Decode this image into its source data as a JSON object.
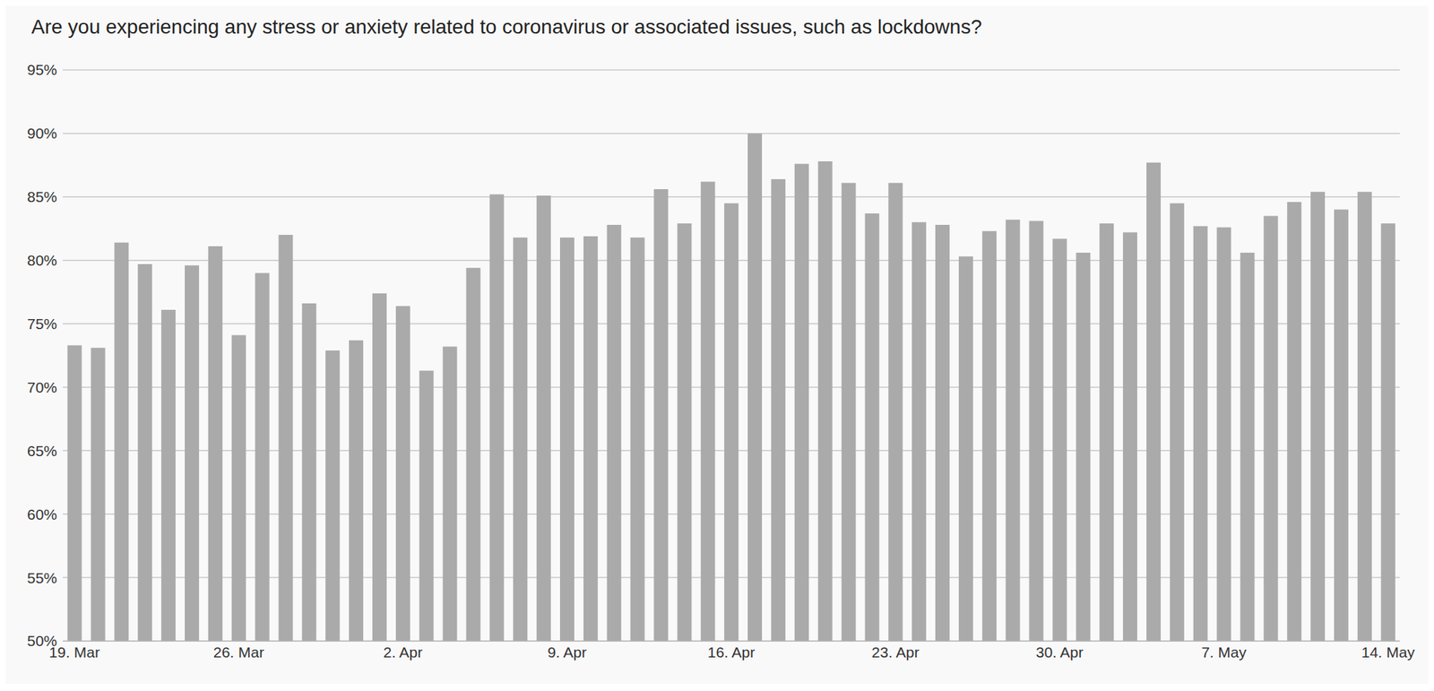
{
  "chart_data": {
    "type": "bar",
    "title": "Are you experiencing any stress or anxiety related to coronavirus or associated issues, such as lockdowns?",
    "categories": [
      "19. Mar",
      null,
      null,
      null,
      null,
      null,
      null,
      "26. Mar",
      null,
      null,
      null,
      null,
      null,
      null,
      "2. Apr",
      null,
      null,
      null,
      null,
      null,
      null,
      "9. Apr",
      null,
      null,
      null,
      null,
      null,
      null,
      "16. Apr",
      null,
      null,
      null,
      null,
      null,
      null,
      "23. Apr",
      null,
      null,
      null,
      null,
      null,
      null,
      "30. Apr",
      null,
      null,
      null,
      null,
      null,
      null,
      "7. May",
      null,
      null,
      null,
      null,
      null,
      null,
      "14. May"
    ],
    "values": [
      73.3,
      73.1,
      81.4,
      79.7,
      76.1,
      79.6,
      81.1,
      74.1,
      79.0,
      82.0,
      76.6,
      72.9,
      73.7,
      77.4,
      76.4,
      71.3,
      73.2,
      79.4,
      85.2,
      81.8,
      85.1,
      81.8,
      81.9,
      82.8,
      81.8,
      85.6,
      82.9,
      86.2,
      84.5,
      90.0,
      86.4,
      87.6,
      87.8,
      86.1,
      83.7,
      86.1,
      83.0,
      82.8,
      80.3,
      82.3,
      83.2,
      83.1,
      81.7,
      80.6,
      82.9,
      82.2,
      87.7,
      84.5,
      82.7,
      82.6,
      80.6,
      83.5,
      84.6,
      85.4,
      84.0,
      85.4,
      82.9
    ],
    "color": "#aaaaaa",
    "ylim": [
      50,
      95
    ],
    "yticks": [
      {
        "value": 50,
        "label": "50%"
      },
      {
        "value": 55,
        "label": "55%"
      },
      {
        "value": 60,
        "label": "60%"
      },
      {
        "value": 65,
        "label": "65%"
      },
      {
        "value": 70,
        "label": "70%"
      },
      {
        "value": 75,
        "label": "75%"
      },
      {
        "value": 80,
        "label": "80%"
      },
      {
        "value": 85,
        "label": "85%"
      },
      {
        "value": 90,
        "label": "90%"
      },
      {
        "value": 95,
        "label": "95%"
      }
    ],
    "grid": true
  }
}
